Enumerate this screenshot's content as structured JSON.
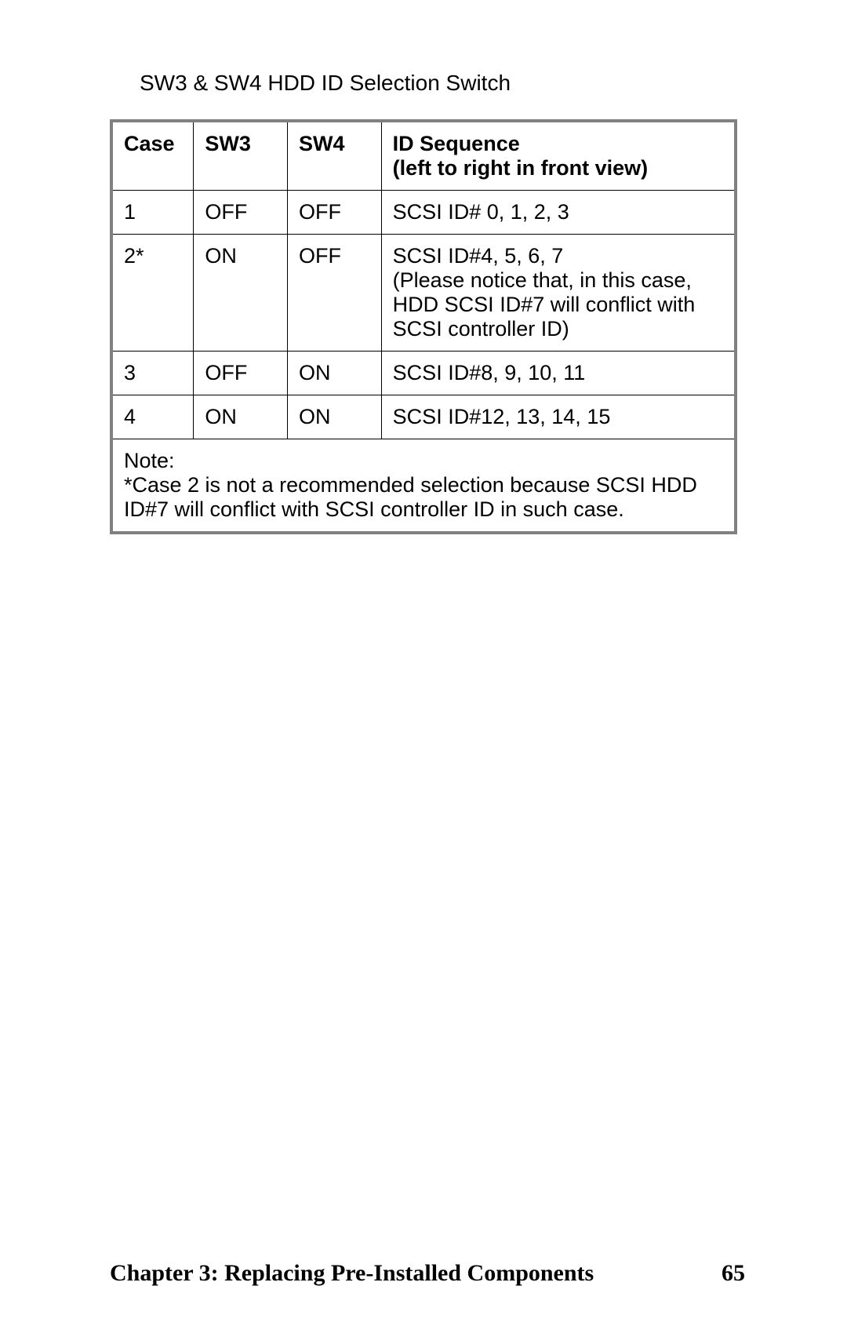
{
  "title": "SW3 & SW4 HDD ID Selection Switch",
  "table": {
    "headers": {
      "case": "Case",
      "sw3": "SW3",
      "sw4": "SW4",
      "idseq_line1": "ID Sequence",
      "idseq_line2": "(left to right in front view)"
    },
    "rows": [
      {
        "case": "1",
        "sw3": "OFF",
        "sw4": "OFF",
        "idseq": "SCSI ID# 0, 1, 2, 3"
      },
      {
        "case": "2*",
        "sw3": "ON",
        "sw4": "OFF",
        "idseq": "SCSI ID#4, 5, 6, 7\n(Please notice that, in this case, HDD SCSI ID#7 will conflict with SCSI controller ID)"
      },
      {
        "case": "3",
        "sw3": "OFF",
        "sw4": "ON",
        "idseq": "SCSI ID#8, 9, 10, 11"
      },
      {
        "case": "4",
        "sw3": "ON",
        "sw4": "ON",
        "idseq": "SCSI ID#12, 13, 14, 15"
      }
    ],
    "note": "Note:\n*Case 2 is not a recommended selection because SCSI HDD ID#7 will conflict with SCSI controller ID in such case."
  },
  "footer": {
    "chapter": "Chapter 3: Replacing Pre-Installed Components",
    "page": "65"
  },
  "colors": {
    "background": "#ffffff",
    "text": "#000000",
    "table_border": "#808080",
    "cell_border": "#000000"
  },
  "typography": {
    "body_font": "Arial",
    "footer_font": "Times New Roman",
    "title_size": 28,
    "cell_size": 27,
    "footer_size": 30
  }
}
